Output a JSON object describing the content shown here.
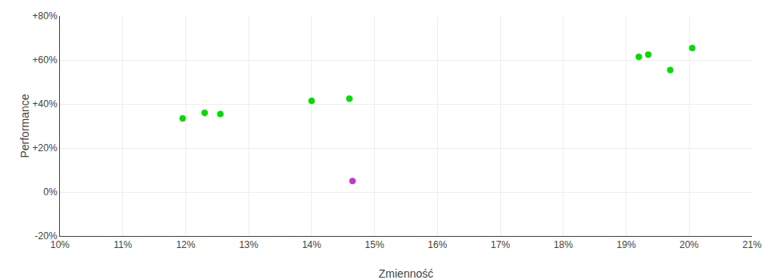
{
  "chart_data": {
    "type": "scatter",
    "xlabel": "Zmienność",
    "ylabel": "Performance",
    "xlim": [
      0.1,
      0.21
    ],
    "ylim": [
      -0.2,
      0.8
    ],
    "xticks": [
      {
        "value": 0.1,
        "label": "10%"
      },
      {
        "value": 0.11,
        "label": "11%"
      },
      {
        "value": 0.12,
        "label": "12%"
      },
      {
        "value": 0.13,
        "label": "13%"
      },
      {
        "value": 0.14,
        "label": "14%"
      },
      {
        "value": 0.15,
        "label": "15%"
      },
      {
        "value": 0.16,
        "label": "16%"
      },
      {
        "value": 0.17,
        "label": "17%"
      },
      {
        "value": 0.18,
        "label": "18%"
      },
      {
        "value": 0.19,
        "label": "19%"
      },
      {
        "value": 0.2,
        "label": "20%"
      },
      {
        "value": 0.21,
        "label": "21%"
      }
    ],
    "yticks": [
      {
        "value": -0.2,
        "label": "-20%"
      },
      {
        "value": 0.0,
        "label": "0%"
      },
      {
        "value": 0.2,
        "label": "+20%"
      },
      {
        "value": 0.4,
        "label": "+40%"
      },
      {
        "value": 0.6,
        "label": "+60%"
      },
      {
        "value": 0.8,
        "label": "+80%"
      }
    ],
    "grid": true,
    "marker": "circle",
    "series": [
      {
        "color": "#00dd00",
        "x": [
          0.1195,
          0.123,
          0.1255,
          0.14,
          0.146,
          0.192,
          0.1935,
          0.197,
          0.2005
        ],
        "values": [
          0.335,
          0.36,
          0.355,
          0.415,
          0.425,
          0.615,
          0.625,
          0.555,
          0.655
        ]
      },
      {
        "color": "#cc33cc",
        "x": [
          0.1465
        ],
        "values": [
          0.05
        ]
      }
    ]
  }
}
